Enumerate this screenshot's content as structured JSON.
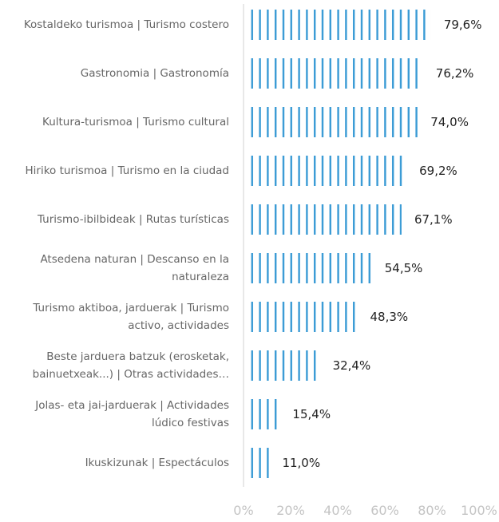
{
  "chart_data": {
    "type": "bar",
    "orientation": "horizontal",
    "categories": [
      "Kostaldeko turismoa | Turismo costero",
      "Gastronomia | Gastronomía",
      "Kultura-turismoa | Turismo cultural",
      "Hiriko turismoa | Turismo en la ciudad",
      "Turismo-ibilbideak | Rutas turísticas",
      "Atsedena naturan | Descanso en la naturaleza",
      "Turismo aktiboa, jarduerak | Turismo activo, actividades",
      "Beste jarduera batzuk (erosketak, bainuetxeak...) | Otras actividades…",
      "Jolas- eta jai-jarduerak | Actividades lúdico festivas",
      "Ikuskizunak | Espectáculos"
    ],
    "values": [
      79.6,
      76.2,
      74.0,
      69.2,
      67.1,
      54.5,
      48.3,
      32.4,
      15.4,
      11.0
    ],
    "value_labels": [
      "79,6%",
      "76,2%",
      "74,0%",
      "69,2%",
      "67,1%",
      "54,5%",
      "48,3%",
      "32,4%",
      "15,4%",
      "11,0%"
    ],
    "color": "#3a9bd5",
    "xlim": [
      0,
      100
    ],
    "xticks": [
      {
        "value": 0,
        "label": "0%"
      },
      {
        "value": 20,
        "label": "20%"
      },
      {
        "value": 40,
        "label": "40%"
      },
      {
        "value": 60,
        "label": "60%"
      },
      {
        "value": 80,
        "label": "80%"
      },
      {
        "value": 100,
        "label": "100%"
      }
    ],
    "grid": false
  }
}
